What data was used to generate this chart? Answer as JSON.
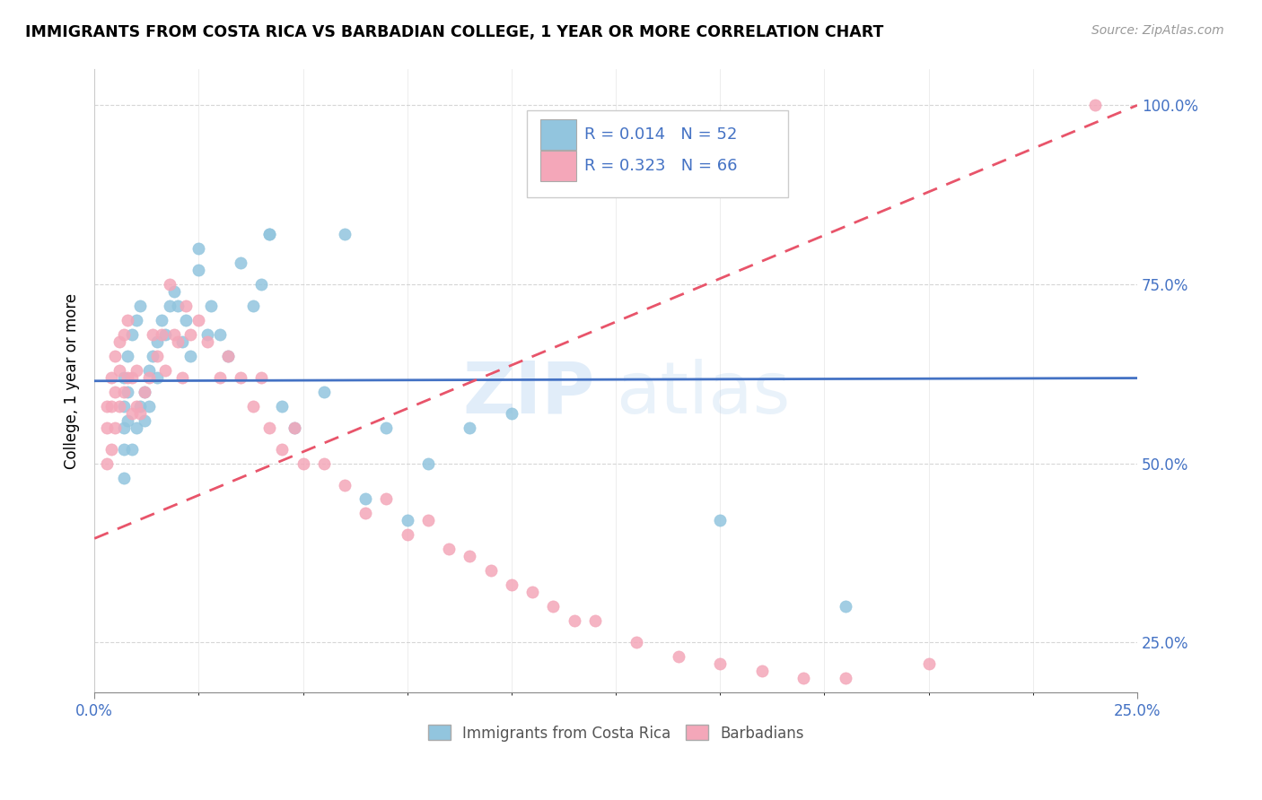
{
  "title": "IMMIGRANTS FROM COSTA RICA VS BARBADIAN COLLEGE, 1 YEAR OR MORE CORRELATION CHART",
  "source_text": "Source: ZipAtlas.com",
  "ylabel": "College, 1 year or more",
  "xlim": [
    0.0,
    0.25
  ],
  "ylim": [
    0.18,
    1.05
  ],
  "ytick_labels": [
    "25.0%",
    "50.0%",
    "75.0%",
    "100.0%"
  ],
  "ytick_vals": [
    0.25,
    0.5,
    0.75,
    1.0
  ],
  "xtick_vals": [
    0.0,
    0.25
  ],
  "xtick_labels": [
    "0.0%",
    "25.0%"
  ],
  "legend_r1": "R = 0.014",
  "legend_n1": "N = 52",
  "legend_r2": "R = 0.323",
  "legend_n2": "N = 66",
  "color_blue": "#92c5de",
  "color_pink": "#f4a7b9",
  "trendline_blue": "#4472c4",
  "trendline_pink": "#e8546a",
  "watermark_zip": "ZIP",
  "watermark_atlas": "atlas",
  "blue_trendline_y": [
    0.615,
    0.619
  ],
  "pink_trendline_y": [
    0.395,
    1.0
  ],
  "blue_x": [
    0.007,
    0.007,
    0.007,
    0.007,
    0.007,
    0.008,
    0.008,
    0.008,
    0.009,
    0.009,
    0.01,
    0.01,
    0.011,
    0.011,
    0.012,
    0.012,
    0.013,
    0.013,
    0.014,
    0.015,
    0.015,
    0.016,
    0.017,
    0.018,
    0.019,
    0.02,
    0.021,
    0.022,
    0.023,
    0.025,
    0.025,
    0.027,
    0.028,
    0.03,
    0.032,
    0.035,
    0.038,
    0.04,
    0.042,
    0.042,
    0.045,
    0.048,
    0.055,
    0.06,
    0.065,
    0.07,
    0.075,
    0.08,
    0.09,
    0.1,
    0.15,
    0.18
  ],
  "blue_y": [
    0.62,
    0.58,
    0.55,
    0.52,
    0.48,
    0.65,
    0.6,
    0.56,
    0.68,
    0.52,
    0.7,
    0.55,
    0.72,
    0.58,
    0.6,
    0.56,
    0.63,
    0.58,
    0.65,
    0.67,
    0.62,
    0.7,
    0.68,
    0.72,
    0.74,
    0.72,
    0.67,
    0.7,
    0.65,
    0.8,
    0.77,
    0.68,
    0.72,
    0.68,
    0.65,
    0.78,
    0.72,
    0.75,
    0.82,
    0.82,
    0.58,
    0.55,
    0.6,
    0.82,
    0.45,
    0.55,
    0.42,
    0.5,
    0.55,
    0.57,
    0.42,
    0.3
  ],
  "pink_x": [
    0.003,
    0.003,
    0.003,
    0.004,
    0.004,
    0.004,
    0.005,
    0.005,
    0.005,
    0.006,
    0.006,
    0.006,
    0.007,
    0.007,
    0.008,
    0.008,
    0.009,
    0.009,
    0.01,
    0.01,
    0.011,
    0.012,
    0.013,
    0.014,
    0.015,
    0.016,
    0.017,
    0.018,
    0.019,
    0.02,
    0.021,
    0.022,
    0.023,
    0.025,
    0.027,
    0.03,
    0.032,
    0.035,
    0.038,
    0.04,
    0.042,
    0.045,
    0.048,
    0.05,
    0.055,
    0.06,
    0.065,
    0.07,
    0.075,
    0.08,
    0.085,
    0.09,
    0.095,
    0.1,
    0.105,
    0.11,
    0.115,
    0.12,
    0.13,
    0.14,
    0.15,
    0.16,
    0.17,
    0.18,
    0.2,
    0.24
  ],
  "pink_y": [
    0.58,
    0.55,
    0.5,
    0.62,
    0.58,
    0.52,
    0.65,
    0.6,
    0.55,
    0.67,
    0.63,
    0.58,
    0.68,
    0.6,
    0.7,
    0.62,
    0.62,
    0.57,
    0.63,
    0.58,
    0.57,
    0.6,
    0.62,
    0.68,
    0.65,
    0.68,
    0.63,
    0.75,
    0.68,
    0.67,
    0.62,
    0.72,
    0.68,
    0.7,
    0.67,
    0.62,
    0.65,
    0.62,
    0.58,
    0.62,
    0.55,
    0.52,
    0.55,
    0.5,
    0.5,
    0.47,
    0.43,
    0.45,
    0.4,
    0.42,
    0.38,
    0.37,
    0.35,
    0.33,
    0.32,
    0.3,
    0.28,
    0.28,
    0.25,
    0.23,
    0.22,
    0.21,
    0.2,
    0.2,
    0.22,
    1.0
  ]
}
